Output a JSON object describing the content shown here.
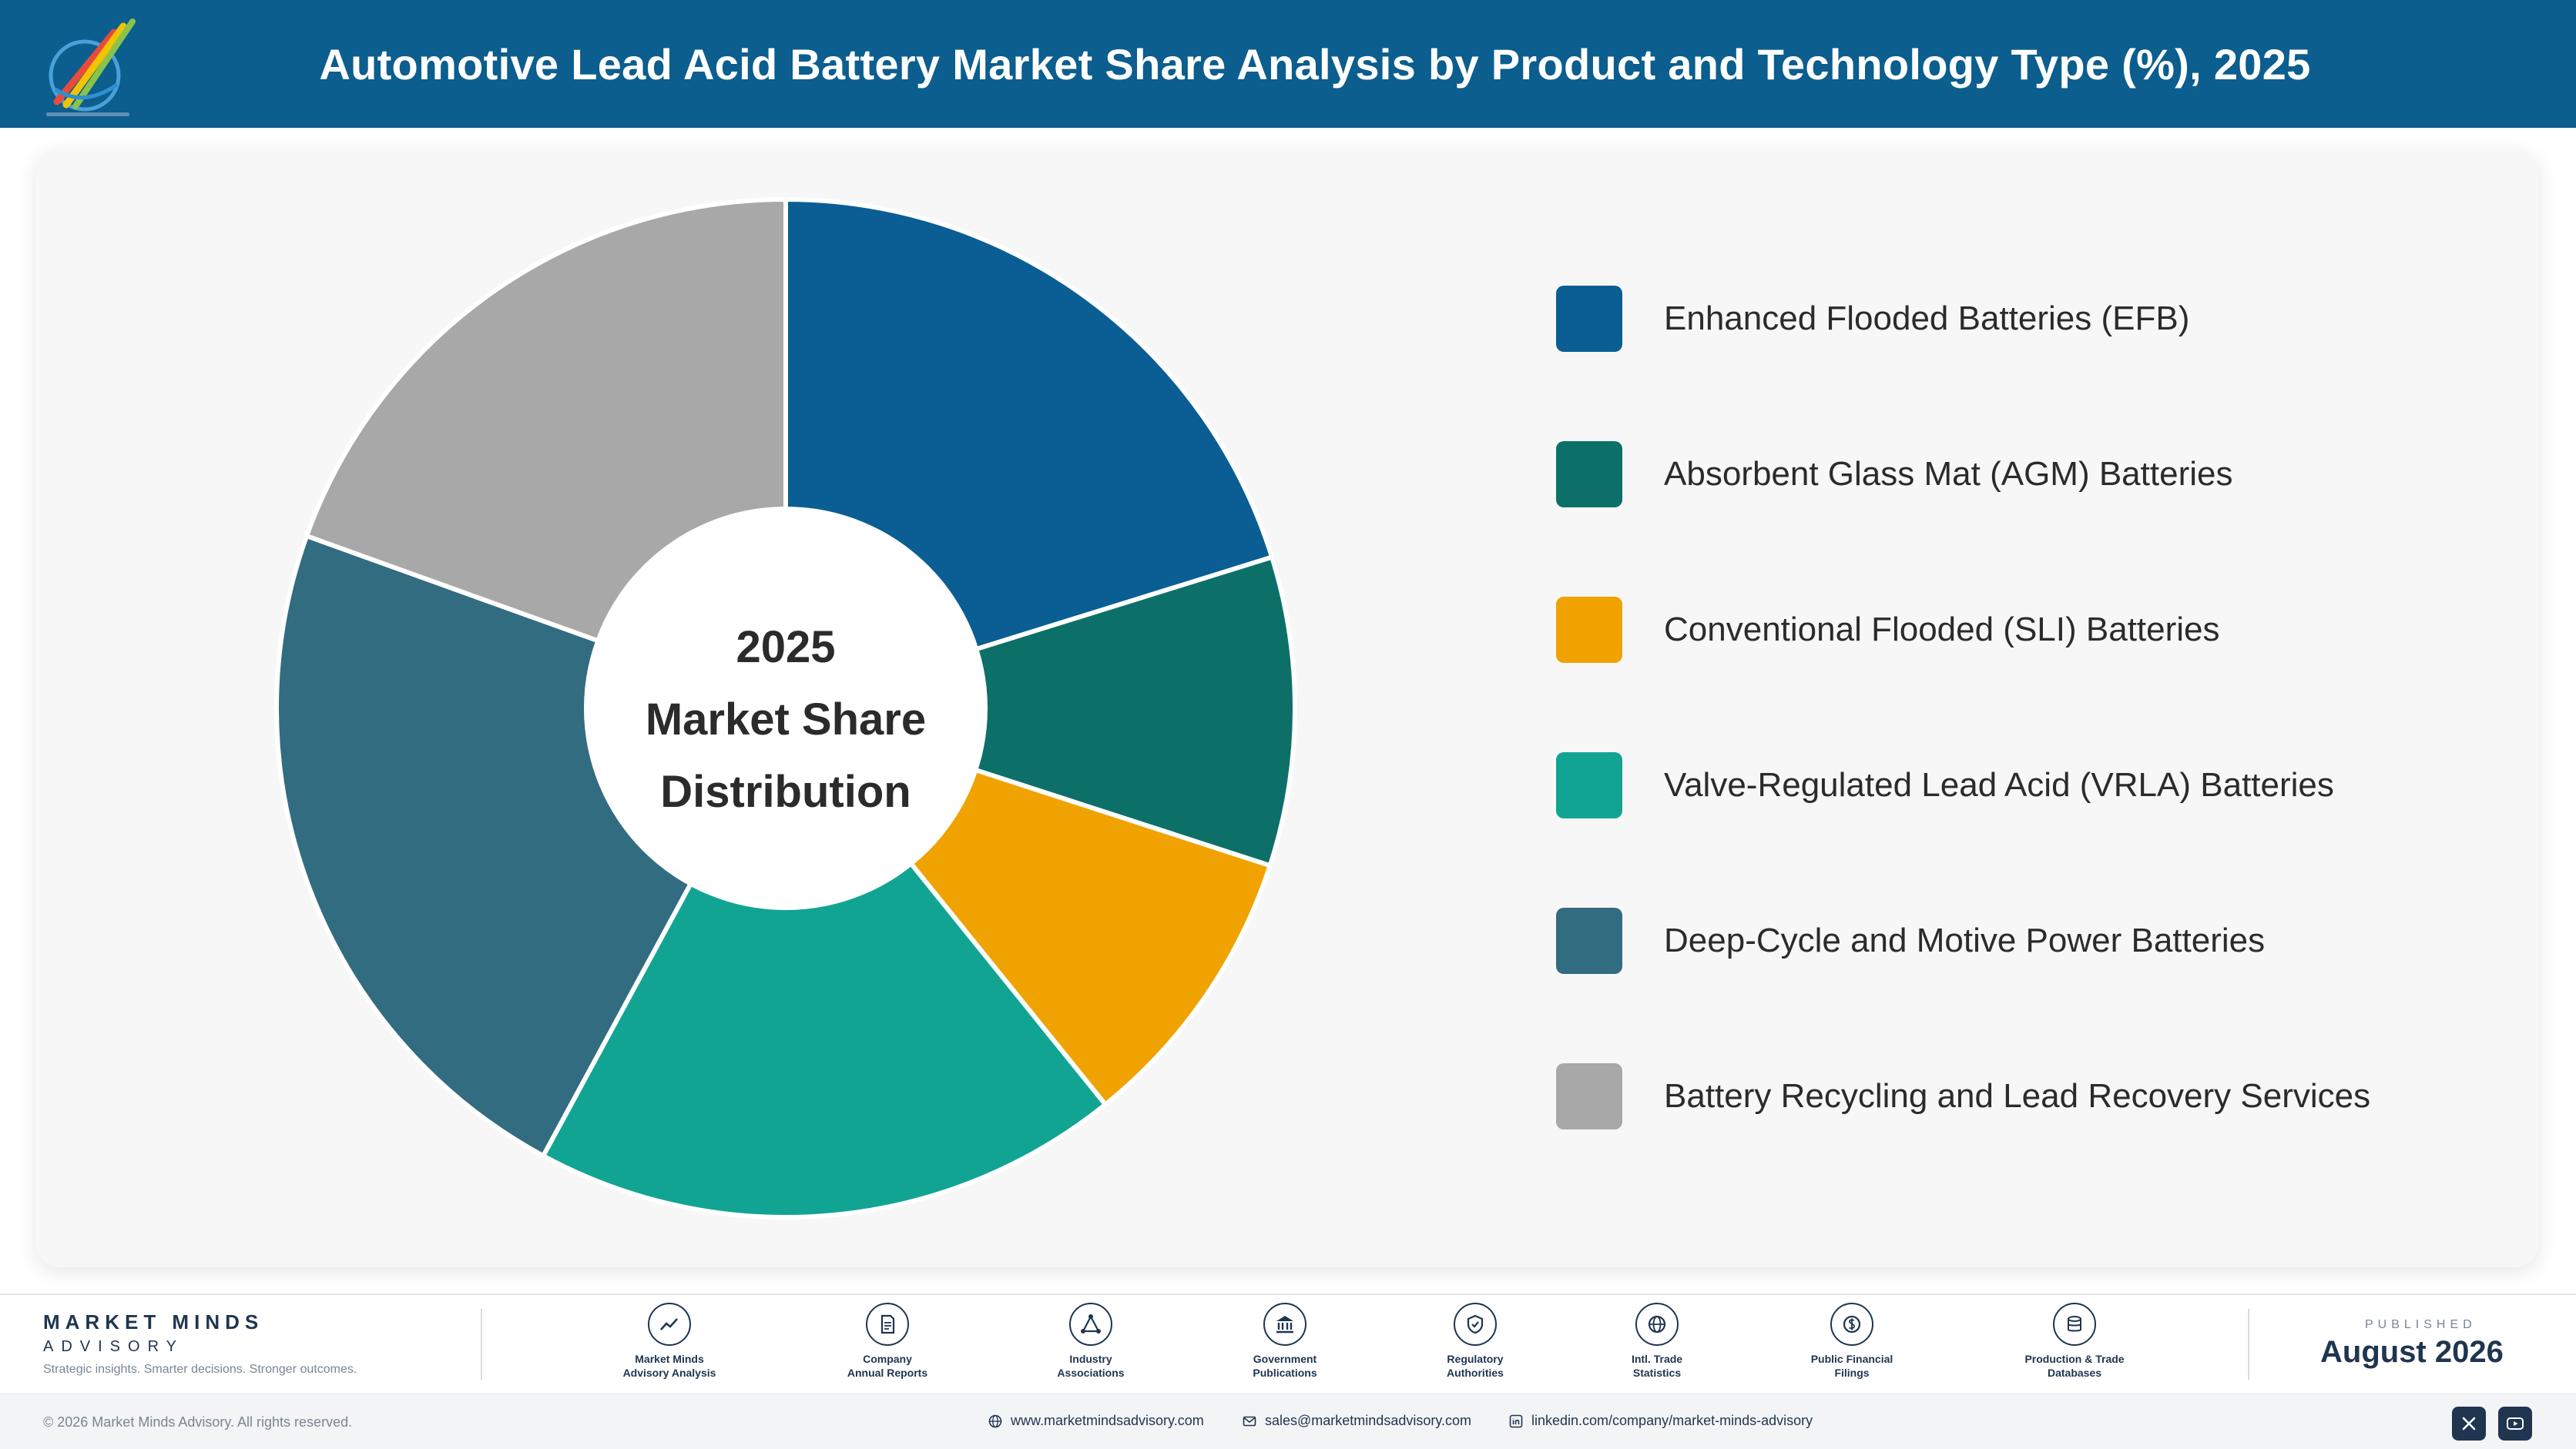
{
  "header": {
    "title": "Automotive Lead Acid Battery Market Share Analysis by Product and Technology Type (%), 2025"
  },
  "colors": {
    "header_bg": "#0b5e8e",
    "navy": "#1f3550"
  },
  "chart_data": {
    "type": "pie",
    "donut": true,
    "title": "Automotive Lead Acid Battery Market Share Analysis by Product and Technology Type (%), 2025",
    "center_label": [
      "2025",
      "Market Share",
      "Distribution"
    ],
    "categories": [
      "Enhanced Flooded Batteries (EFB)",
      "Absorbent Glass Mat (AGM) Batteries",
      "Conventional Flooded (SLI) Batteries",
      "Valve-Regulated Lead Acid (VRLA) Batteries",
      "Deep-Cycle and Motive Power Batteries",
      "Battery Recycling and Lead Recovery Services"
    ],
    "values": [
      20.2,
      9.8,
      9.2,
      18.7,
      22.6,
      19.5
    ],
    "colors": [
      "#0a5e93",
      "#0c7069",
      "#f0a300",
      "#12a493",
      "#326c80",
      "#a8a8a8"
    ],
    "legend_position": "right"
  },
  "footer": {
    "brand_name": "MARKET MINDS",
    "brand_sub": "ADVISORY",
    "tagline": "Strategic insights. Smarter decisions. Stronger outcomes.",
    "sources": [
      {
        "icon": "trend-chart-icon",
        "label": "Market Minds\nAdvisory Analysis"
      },
      {
        "icon": "document-icon",
        "label": "Company\nAnnual Reports"
      },
      {
        "icon": "network-icon",
        "label": "Industry\nAssociations"
      },
      {
        "icon": "government-building-icon",
        "label": "Government\nPublications"
      },
      {
        "icon": "shield-check-icon",
        "label": "Regulatory\nAuthorities"
      },
      {
        "icon": "globe-icon",
        "label": "Intl. Trade\nStatistics"
      },
      {
        "icon": "currency-icon",
        "label": "Public Financial\nFilings"
      },
      {
        "icon": "database-icon",
        "label": "Production & Trade\nDatabases"
      }
    ],
    "published_label": "PUBLISHED",
    "published_date": "August 2026",
    "copyright": "© 2026 Market Minds Advisory. All rights reserved.",
    "website": "www.marketmindsadvisory.com",
    "email": "sales@marketmindsadvisory.com",
    "linkedin": "linkedin.com/company/market-minds-advisory"
  }
}
